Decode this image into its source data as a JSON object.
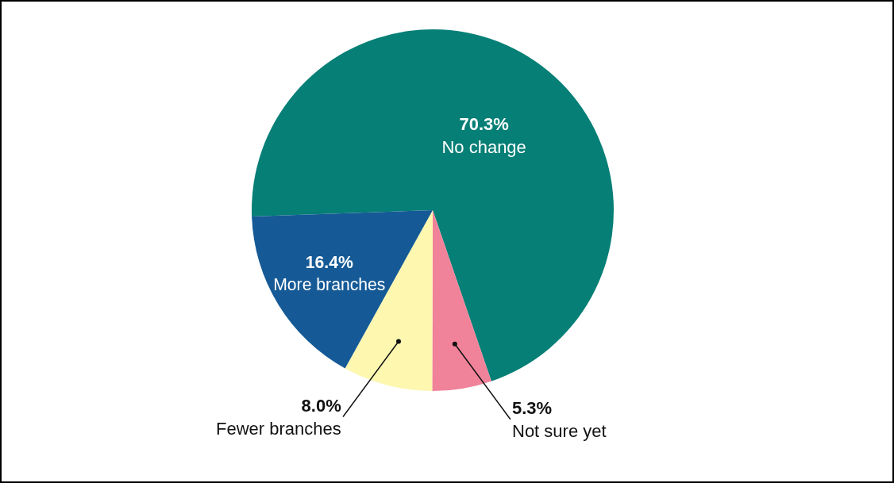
{
  "chart_data": {
    "type": "pie",
    "categories": [
      "No change",
      "Not sure yet",
      "Fewer branches",
      "More branches"
    ],
    "values": [
      70.3,
      5.3,
      8.0,
      16.4
    ],
    "value_labels": [
      "70.3%",
      "5.3%",
      "8.0%",
      "16.4%"
    ],
    "colors": [
      "#067f76",
      "#f08299",
      "#fdf7b0",
      "#155a96"
    ],
    "legend": false
  }
}
